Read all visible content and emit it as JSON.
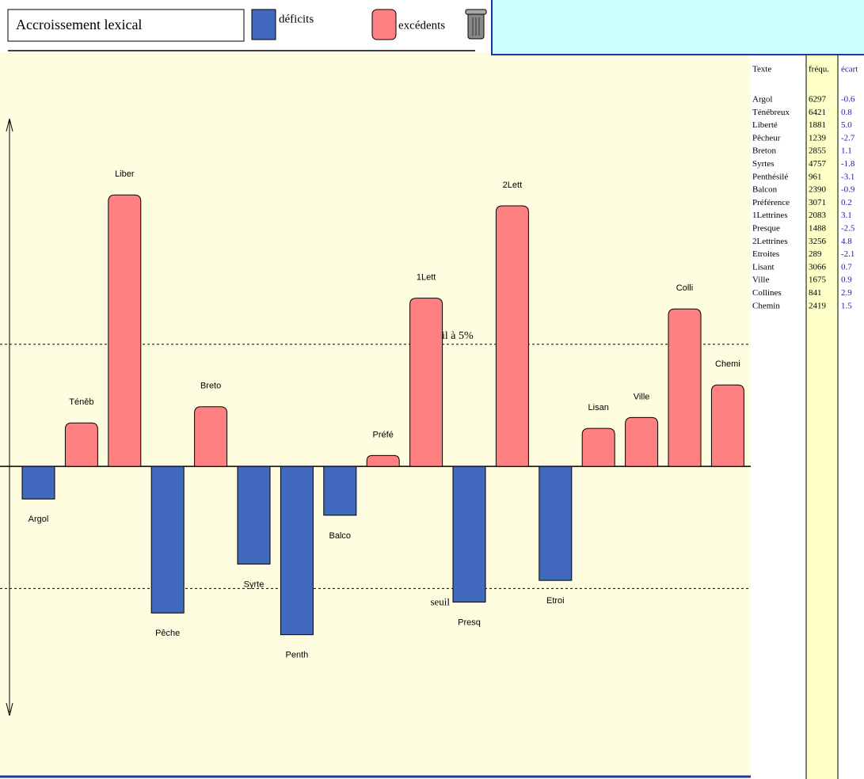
{
  "header": {
    "title": "Accroissement lexical"
  },
  "chart_data": {
    "type": "bar",
    "legend": {
      "negative": "déficits",
      "positive": "excédents"
    },
    "negative_color": "#4169be",
    "positive_color": "#ff8080",
    "categories": [
      "Argol",
      "Téněb",
      "Liber",
      "Pêche",
      "Breto",
      "Syrte",
      "Penth",
      "Balco",
      "Préfé",
      "1Lett",
      "Presq",
      "2Lett",
      "Etroi",
      "Lisan",
      "Ville",
      "Colli",
      "Chemi"
    ],
    "values": [
      -0.6,
      0.8,
      5.0,
      -2.7,
      1.1,
      -1.8,
      -3.1,
      -0.9,
      0.2,
      3.1,
      -2.5,
      4.8,
      -2.1,
      0.7,
      0.9,
      2.9,
      1.5
    ],
    "ylim": [
      -5.7,
      7.6
    ],
    "thresholds": [
      2.25,
      -2.25
    ],
    "threshold_labels": [
      "il à 5%",
      "seuil"
    ]
  },
  "table": {
    "columns": [
      "Texte",
      "fréqu.",
      "écart"
    ],
    "rows": [
      [
        "Argol",
        "6297",
        "-0.6"
      ],
      [
        "Ténébreux",
        "6421",
        "0.8"
      ],
      [
        "Liberté",
        "1881",
        "5.0"
      ],
      [
        "Pêcheur",
        "1239",
        "-2.7"
      ],
      [
        "Breton",
        "2855",
        "1.1"
      ],
      [
        "Syrtes",
        "4757",
        "-1.8"
      ],
      [
        "Penthésilé",
        "961",
        "-3.1"
      ],
      [
        "Balcon",
        "2390",
        "-0.9"
      ],
      [
        "Préférence",
        "3071",
        "0.2"
      ],
      [
        "1Lettrines",
        "2083",
        "3.1"
      ],
      [
        "Presque",
        "1488",
        "-2.5"
      ],
      [
        "2Lettrines",
        "3256",
        "4.8"
      ],
      [
        "Etroites",
        "289",
        "-2.1"
      ],
      [
        "Lisant",
        "3066",
        "0.7"
      ],
      [
        "Ville",
        "1675",
        "0.9"
      ],
      [
        "Collines",
        "841",
        "2.9"
      ],
      [
        "Chemin",
        "2419",
        "1.5"
      ]
    ]
  }
}
